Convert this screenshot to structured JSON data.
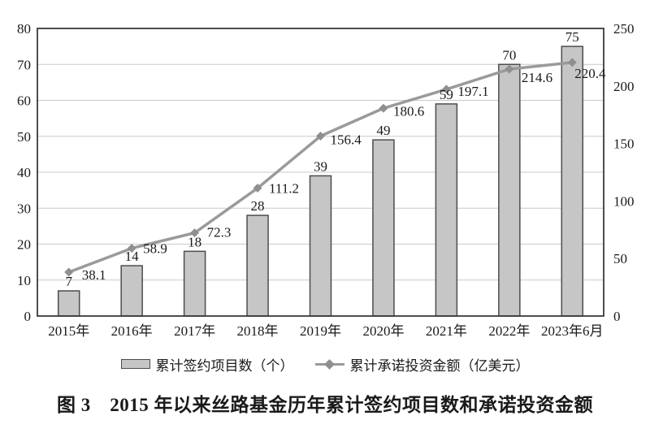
{
  "chart_data": {
    "type": "bar+line combo",
    "categories": [
      "2015年",
      "2016年",
      "2017年",
      "2018年",
      "2019年",
      "2020年",
      "2021年",
      "2022年",
      "2023年6月"
    ],
    "series": [
      {
        "name": "累计签约项目数（个）",
        "type": "bar",
        "axis": "left",
        "values": [
          7,
          14,
          18,
          28,
          39,
          49,
          59,
          70,
          75
        ],
        "value_labels": [
          "7",
          "14",
          "18",
          "28",
          "39",
          "49",
          "59",
          "70",
          "75"
        ]
      },
      {
        "name": "累计承诺投资金额（亿美元）",
        "type": "line",
        "axis": "right",
        "values": [
          38.1,
          58.9,
          72.3,
          111.2,
          156.4,
          180.6,
          197.1,
          214.6,
          220.4
        ],
        "value_labels": [
          "38.1",
          "58.9",
          "72.3",
          "111.2",
          "156.4",
          "180.6",
          "197.1",
          "214.6",
          "220.4"
        ],
        "label_offsets": [
          [
            16,
            9
          ],
          [
            14,
            6
          ],
          [
            15,
            5
          ],
          [
            14,
            6
          ],
          [
            12,
            10
          ],
          [
            12,
            9
          ],
          [
            14,
            8
          ],
          [
            15,
            16
          ],
          [
            3,
            19
          ]
        ]
      }
    ],
    "left_axis": {
      "min": 0,
      "max": 80,
      "step": 10,
      "ticks": [
        "0",
        "10",
        "20",
        "30",
        "40",
        "50",
        "60",
        "70",
        "80"
      ]
    },
    "right_axis": {
      "min": 0,
      "max": 250,
      "step": 50,
      "ticks": [
        "0",
        "50",
        "100",
        "150",
        "200",
        "250"
      ]
    },
    "grid": "horizontal gridlines at each left-axis step, plot framed by rectangle",
    "legend_position": "bottom",
    "colors": {
      "bar_fill": "#c6c6c6",
      "bar_border": "#4d4d4d",
      "line": "#9a9a9a",
      "marker": "#8f8f8f",
      "grid": "#c9c9c9",
      "frame": "#3a3a3a",
      "text": "#1a1a1a",
      "background": "#ffffff"
    }
  },
  "legend": {
    "items": [
      {
        "label": "累计签约项目数（个）",
        "swatch": "bar-swatch"
      },
      {
        "label": "累计承诺投资金额（亿美元）",
        "swatch": "line-diamond-swatch"
      }
    ]
  },
  "caption": "图 3　2015 年以来丝路基金历年累计签约项目数和承诺投资金额"
}
